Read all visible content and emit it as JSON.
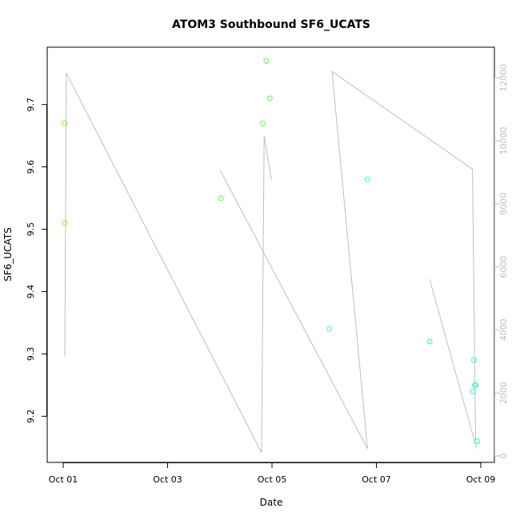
{
  "chart_data": {
    "type": "scatter",
    "title": "ATOM3 Southbound SF6_UCATS",
    "xlabel": "Date",
    "ylabel": "SF6_UCATS",
    "x_ticks": [
      "Oct 01",
      "Oct 03",
      "Oct 05",
      "Oct 07",
      "Oct 09"
    ],
    "y_ticks": [
      "9.2",
      "9.3",
      "9.4",
      "9.5",
      "9.6",
      "9.7"
    ],
    "y2_ticks": [
      "0",
      "2000",
      "4000",
      "6000",
      "8000",
      "10000",
      "12000"
    ],
    "xlim_days": [
      0.0,
      8.28
    ],
    "ylim": [
      9.126,
      9.792
    ],
    "y2lim": [
      -205,
      12970
    ],
    "points": [
      {
        "day": 0.03,
        "y": 9.67,
        "color": "#7FFF00"
      },
      {
        "day": 0.03,
        "y": 9.51,
        "color": "#7FFF00"
      },
      {
        "day": 3.02,
        "y": 9.55,
        "color": "#60FF30"
      },
      {
        "day": 3.82,
        "y": 9.67,
        "color": "#55FF45"
      },
      {
        "day": 3.89,
        "y": 9.77,
        "color": "#55FF45"
      },
      {
        "day": 3.96,
        "y": 9.71,
        "color": "#50FF50"
      },
      {
        "day": 5.1,
        "y": 9.34,
        "color": "#40FF80"
      },
      {
        "day": 5.83,
        "y": 9.58,
        "color": "#38FF90"
      },
      {
        "day": 7.02,
        "y": 9.32,
        "color": "#25FFB0"
      },
      {
        "day": 7.85,
        "y": 9.24,
        "color": "#15FFC8"
      },
      {
        "day": 7.87,
        "y": 9.29,
        "color": "#15FFC8"
      },
      {
        "day": 7.89,
        "y": 9.25,
        "color": "#15FFC8"
      },
      {
        "day": 7.9,
        "y": 9.25,
        "color": "#15FFC8"
      },
      {
        "day": 7.93,
        "y": 9.16,
        "color": "#00FFE0"
      }
    ],
    "altitude_segments": [
      [
        [
          0.03,
          3150
        ],
        [
          0.06,
          12150
        ],
        [
          3.8,
          110
        ],
        [
          3.85,
          10150
        ],
        [
          3.99,
          8750
        ]
      ],
      [
        [
          3.0,
          9080
        ],
        [
          5.83,
          230
        ],
        [
          5.15,
          12200
        ],
        [
          7.84,
          9100
        ],
        [
          7.9,
          500
        ]
      ],
      [
        [
          7.02,
          5600
        ],
        [
          7.92,
          230
        ]
      ]
    ],
    "altitude_color": "#bebebe"
  }
}
